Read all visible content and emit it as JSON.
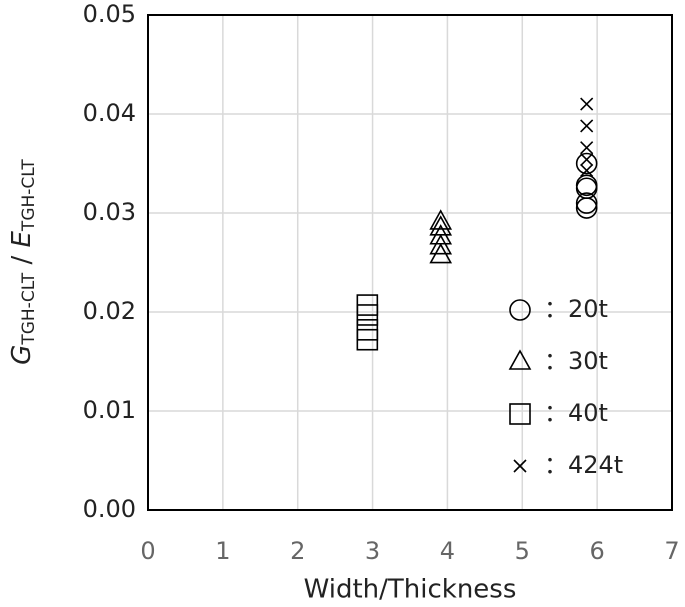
{
  "chart_data": {
    "type": "scatter",
    "xlabel": "Width/Thickness",
    "ylabel_parts": [
      "G",
      "TGH-CLT",
      " / ",
      "E",
      "TGH-CLT"
    ],
    "xlim": [
      0,
      7
    ],
    "xticks": [
      0,
      1,
      2,
      3,
      4,
      5,
      6,
      7
    ],
    "ylim": [
      0,
      0.05
    ],
    "yticks": [
      {
        "value": 0,
        "label": "0.00"
      },
      0.01,
      0.02,
      0.03,
      0.04,
      0.05
    ],
    "grid": true,
    "legend": "lower right",
    "series": [
      {
        "name": "20t",
        "marker": "circle",
        "color": "#000000",
        "x": [
          5.86,
          5.86,
          5.86,
          5.86,
          5.86
        ],
        "values": [
          0.035,
          0.0328,
          0.0325,
          0.031,
          0.0305
        ]
      },
      {
        "name": "30t",
        "marker": "triangle",
        "color": "#000000",
        "x": [
          3.91,
          3.91,
          3.91,
          3.91,
          3.91
        ],
        "values": [
          0.0291,
          0.0285,
          0.0276,
          0.0266,
          0.0257
        ]
      },
      {
        "name": "40t",
        "marker": "square",
        "color": "#000000",
        "x": [
          2.93,
          2.93,
          2.93,
          2.93
        ],
        "values": [
          0.0207,
          0.0197,
          0.0182,
          0.0172
        ]
      },
      {
        "name": "424t",
        "marker": "cross",
        "color": "#000000",
        "x": [
          5.86,
          5.86,
          5.86,
          5.86,
          5.86
        ],
        "values": [
          0.041,
          0.0388,
          0.0366,
          0.0354,
          0.0343
        ]
      }
    ]
  }
}
